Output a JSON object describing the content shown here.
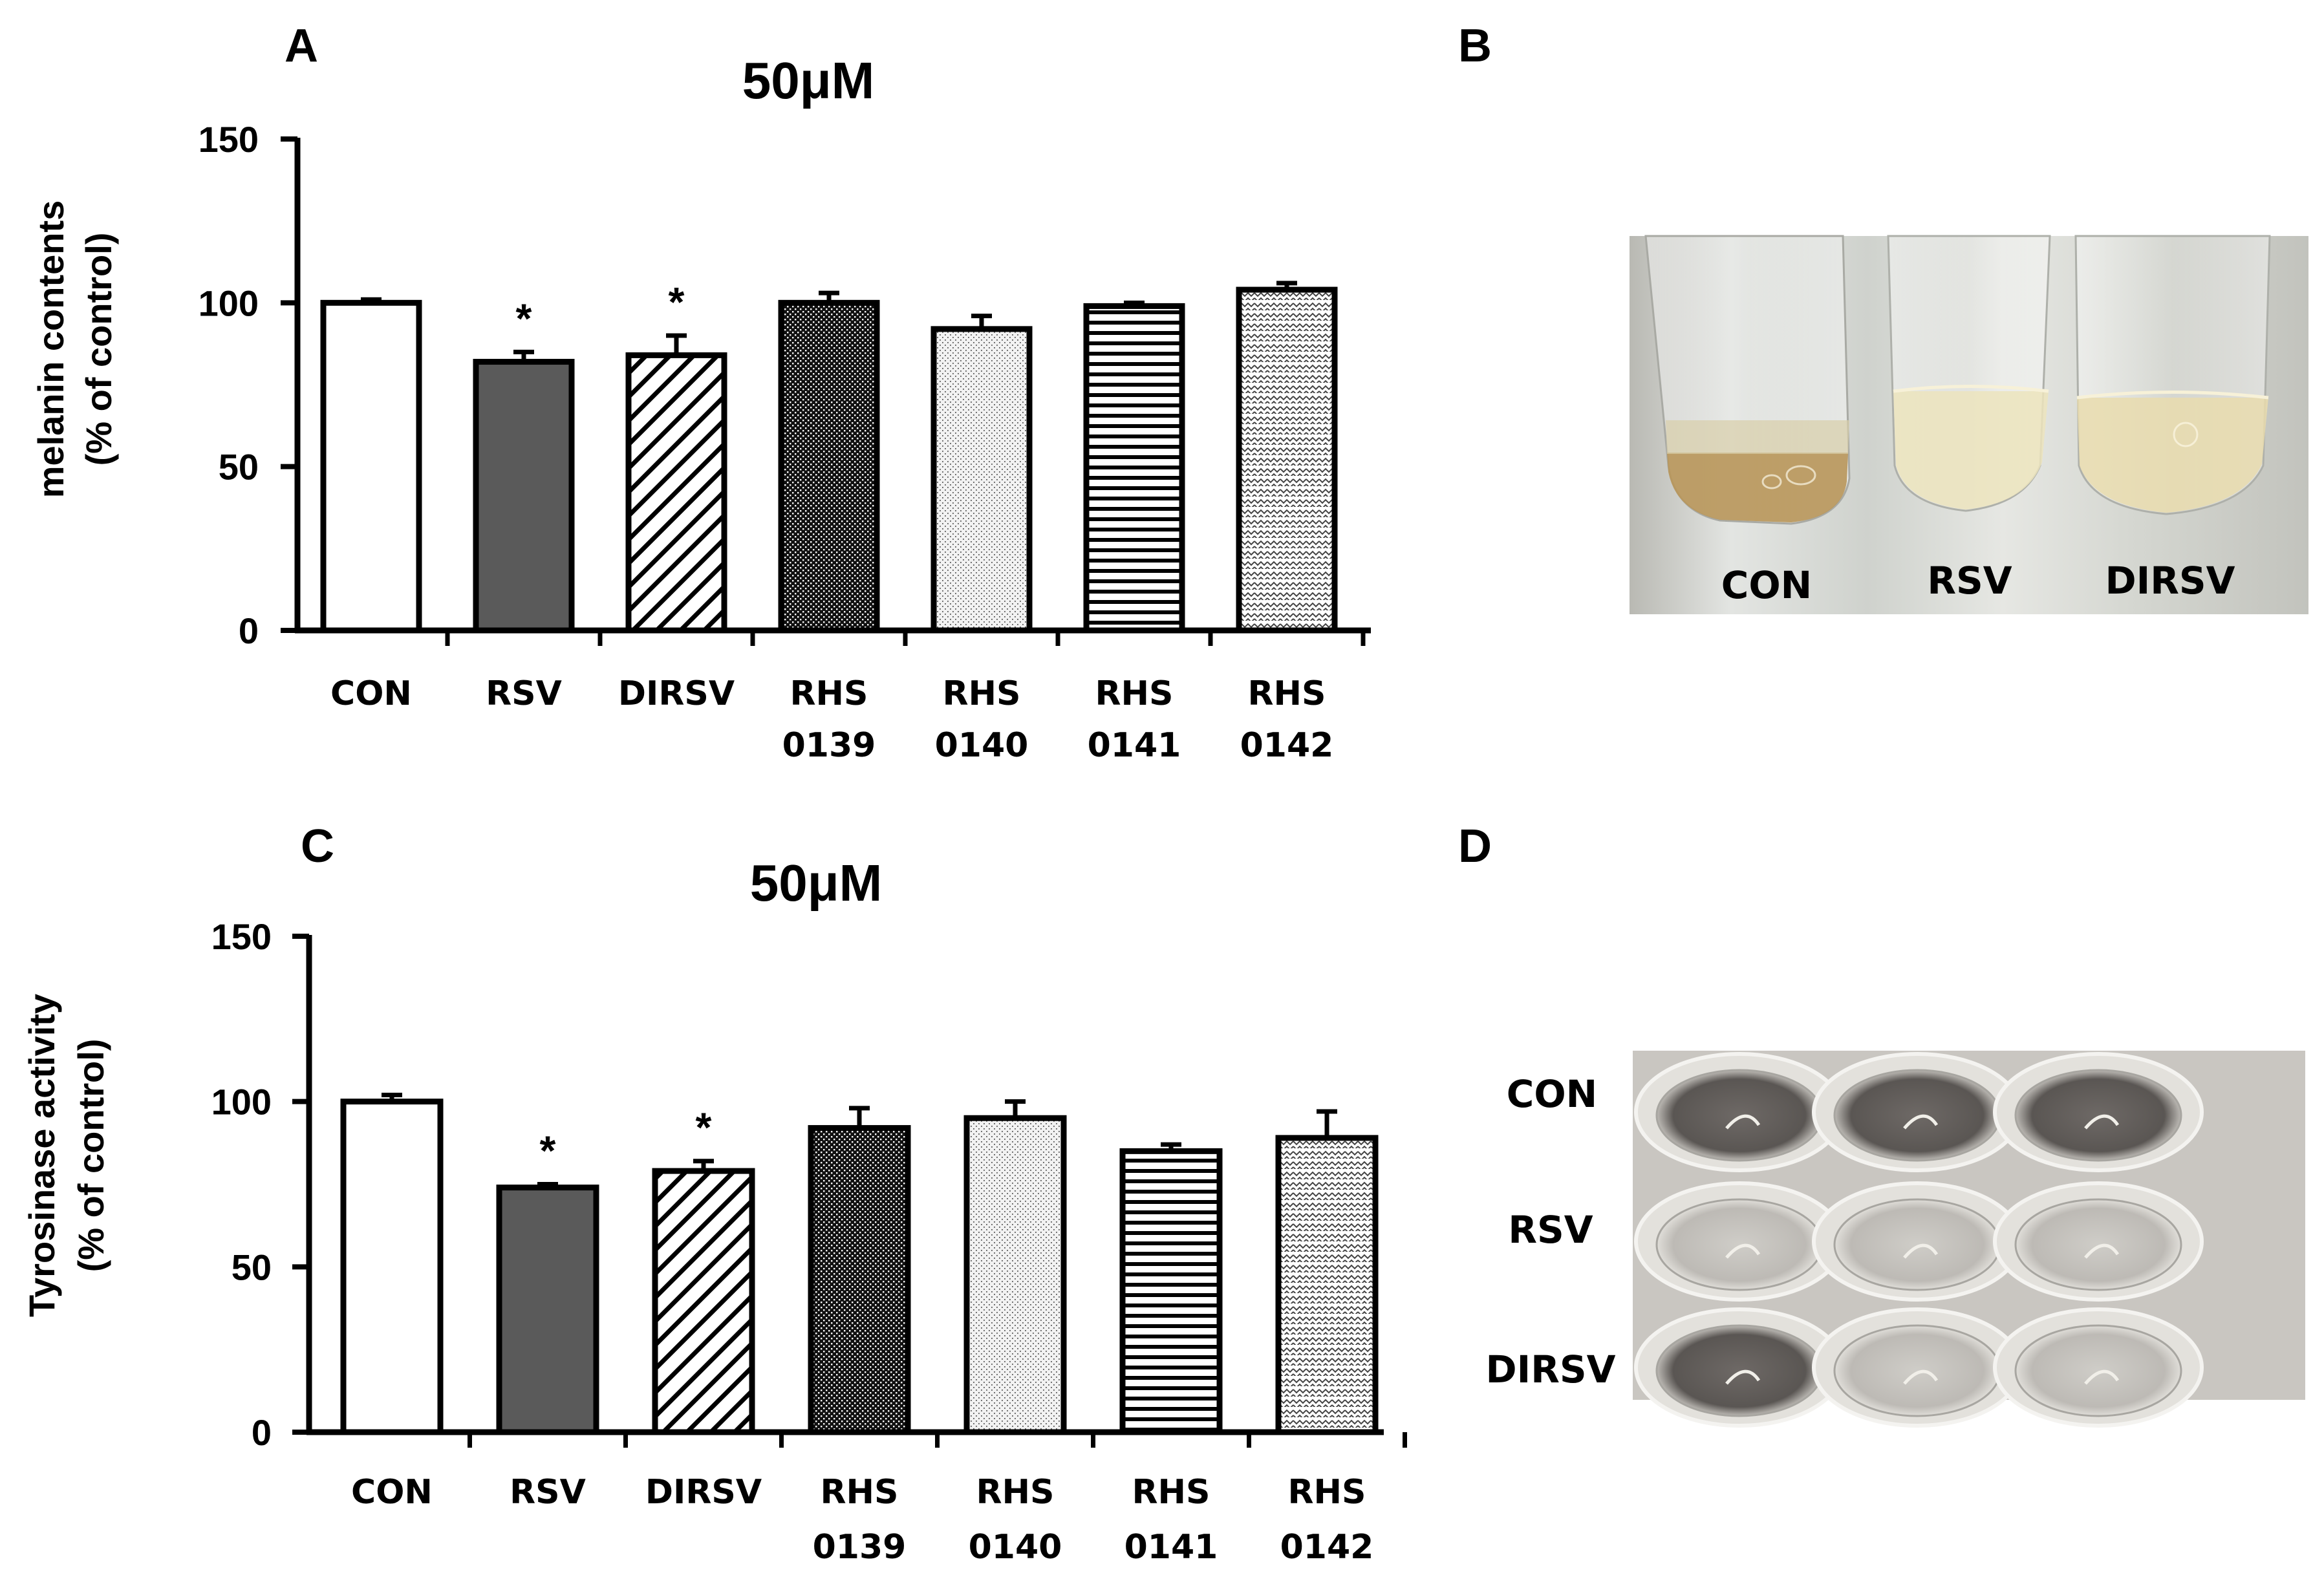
{
  "panels": {
    "a": "A",
    "b": "B",
    "c": "C",
    "d": "D"
  },
  "chart_data": [
    {
      "type": "bar",
      "title": "50μM",
      "ylabel_lines": [
        "melanin contents",
        "(% of control)"
      ],
      "ylim": [
        0,
        150
      ],
      "yticks": [
        "0",
        "50",
        "100",
        "150"
      ],
      "categories": [
        [
          "CON"
        ],
        [
          "RSV"
        ],
        [
          "DIRSV"
        ],
        [
          "RHS",
          "0139"
        ],
        [
          "RHS",
          "0140"
        ],
        [
          "RHS",
          "0141"
        ],
        [
          "RHS",
          "0142"
        ]
      ],
      "values": [
        100,
        82,
        84,
        100,
        92,
        99,
        104
      ],
      "errors": [
        1,
        3,
        6,
        3,
        4,
        1,
        2
      ],
      "significance": [
        "",
        "*",
        "*",
        "",
        "",
        "",
        ""
      ]
    },
    {
      "type": "bar",
      "title": "50μM",
      "ylabel_lines": [
        "Tyrosinase activity",
        "(% of control)"
      ],
      "ylim": [
        0,
        150
      ],
      "yticks": [
        "0",
        "50",
        "100",
        "150"
      ],
      "categories": [
        [
          "CON"
        ],
        [
          "RSV"
        ],
        [
          "DIRSV"
        ],
        [
          "RHS",
          "0139"
        ],
        [
          "RHS",
          "0140"
        ],
        [
          "RHS",
          "0141"
        ],
        [
          "RHS",
          "0142"
        ]
      ],
      "values": [
        100,
        74,
        79,
        92,
        95,
        85,
        89
      ],
      "errors": [
        2,
        1,
        3,
        6,
        5,
        2,
        8
      ],
      "significance": [
        "",
        "*",
        "*",
        "",
        "",
        "",
        ""
      ]
    }
  ],
  "photo_b": {
    "labels": [
      "CON",
      "RSV",
      "DIRSV"
    ]
  },
  "photo_d": {
    "labels": [
      "CON",
      "RSV",
      "DIRSV"
    ]
  }
}
